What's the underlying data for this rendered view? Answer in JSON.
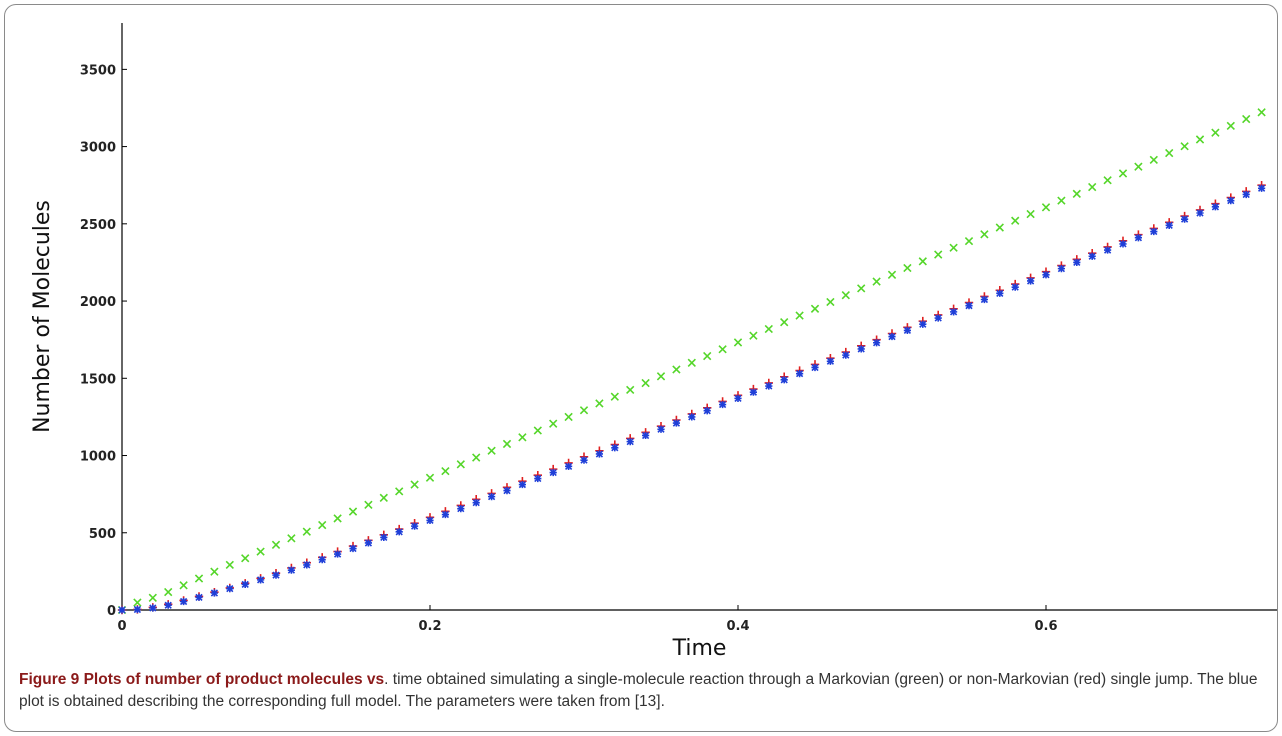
{
  "chart_data": {
    "type": "scatter",
    "title": "",
    "xlabel": "Time",
    "ylabel": "Number of Molecules",
    "xlim": [
      0,
      0.75
    ],
    "ylim": [
      0,
      3800
    ],
    "xticks": [
      "0",
      "0.2",
      "0.4",
      "0.6"
    ],
    "xtick_values": [
      0,
      0.2,
      0.4,
      0.6
    ],
    "yticks": [
      "0",
      "500",
      "1000",
      "1500",
      "2000",
      "2500",
      "3000",
      "3500"
    ],
    "ytick_values": [
      0,
      500,
      1000,
      1500,
      2000,
      2500,
      3000,
      3500
    ],
    "x_step": 0.01,
    "series": [
      {
        "marker": "x",
        "color": "#55d62a",
        "values": [
          0,
          48,
          79,
          116,
          160,
          204,
          248,
          292,
          335,
          378,
          422,
          464,
          507,
          550,
          593,
          637,
          681,
          726,
          768,
          812,
          856,
          899,
          943,
          987,
          1031,
          1075,
          1118,
          1162,
          1206,
          1250,
          1293,
          1337,
          1381,
          1425,
          1469,
          1513,
          1557,
          1600,
          1644,
          1688,
          1732,
          1776,
          1819,
          1863,
          1906,
          1950,
          1994,
          2038,
          2082,
          2126,
          2170,
          2214,
          2257,
          2301,
          2345,
          2388,
          2432,
          2476,
          2520,
          2563,
          2607,
          2650,
          2694,
          2738,
          2782,
          2826,
          2870,
          2914,
          2958,
          3002,
          3046,
          3090,
          3134,
          3178,
          3222
        ]
      },
      {
        "marker": "+",
        "color": "#e02020",
        "values": [
          0,
          4,
          17,
          37,
          62,
          88,
          115,
          143,
          173,
          205,
          238,
          272,
          306,
          341,
          378,
          414,
          451,
          487,
          524,
          562,
          600,
          639,
          677,
          717,
          755,
          794,
          834,
          873,
          912,
          952,
          992,
          1031,
          1071,
          1111,
          1150,
          1190,
          1230,
          1269,
          1309,
          1350,
          1390,
          1430,
          1470,
          1510,
          1550,
          1590,
          1630,
          1670,
          1710,
          1750,
          1790,
          1830,
          1870,
          1910,
          1950,
          1990,
          2030,
          2070,
          2110,
          2150,
          2190,
          2230,
          2270,
          2310,
          2350,
          2390,
          2430,
          2470,
          2510,
          2550,
          2590,
          2630,
          2670,
          2710,
          2750
        ]
      },
      {
        "marker": "asterisk",
        "color": "#1f3fd8",
        "values": [
          0,
          3,
          13,
          31,
          55,
          82,
          110,
          138,
          166,
          195,
          226,
          258,
          292,
          326,
          362,
          398,
          434,
          470,
          506,
          543,
          580,
          618,
          656,
          695,
          734,
          773,
          812,
          851,
          890,
          930,
          970,
          1010,
          1050,
          1090,
          1130,
          1170,
          1210,
          1250,
          1290,
          1330,
          1370,
          1410,
          1450,
          1490,
          1530,
          1570,
          1610,
          1650,
          1690,
          1730,
          1770,
          1810,
          1850,
          1890,
          1930,
          1970,
          2010,
          2050,
          2090,
          2130,
          2170,
          2210,
          2250,
          2290,
          2330,
          2370,
          2410,
          2450,
          2490,
          2530,
          2570,
          2610,
          2650,
          2690,
          2730
        ]
      }
    ]
  },
  "caption": {
    "lead": "Figure 9 Plots of number of product molecules vs",
    "text": ". time obtained simulating a single-molecule reaction through a Markovian (green) or non-Markovian (red) single jump. The blue plot is obtained describing the corresponding full model. The parameters were taken from [13]."
  }
}
